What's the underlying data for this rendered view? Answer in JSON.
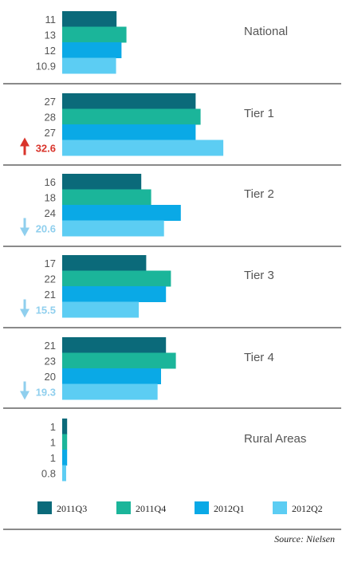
{
  "chart_data": {
    "type": "bar",
    "orientation": "horizontal",
    "series": [
      {
        "name": "2011Q3",
        "color": "#0b6a7a"
      },
      {
        "name": "2011Q4",
        "color": "#1bb59a"
      },
      {
        "name": "2012Q1",
        "color": "#0aa9e6"
      },
      {
        "name": "2012Q2",
        "color": "#5ccdf3"
      }
    ],
    "groups": [
      {
        "label": "National",
        "values": [
          11,
          13,
          12,
          10.9
        ],
        "labels": [
          "11",
          "13",
          "12",
          "10.9"
        ],
        "trend": "none"
      },
      {
        "label": "Tier 1",
        "values": [
          27,
          28,
          27,
          32.6
        ],
        "labels": [
          "27",
          "28",
          "27",
          "32.6"
        ],
        "trend": "up"
      },
      {
        "label": "Tier 2",
        "values": [
          16,
          18,
          24,
          20.6
        ],
        "labels": [
          "16",
          "18",
          "24",
          "20.6"
        ],
        "trend": "down"
      },
      {
        "label": "Tier 3",
        "values": [
          17,
          22,
          21,
          15.5
        ],
        "labels": [
          "17",
          "22",
          "21",
          "15.5"
        ],
        "trend": "down"
      },
      {
        "label": "Tier 4",
        "values": [
          21,
          23,
          20,
          19.3
        ],
        "labels": [
          "21",
          "23",
          "20",
          "19.3"
        ],
        "trend": "down"
      },
      {
        "label": "Rural Areas",
        "values": [
          1,
          1,
          1,
          0.8
        ],
        "labels": [
          "1",
          "1",
          "1",
          "0.8"
        ],
        "trend": "none"
      }
    ],
    "trend_colors": {
      "up": "#d9342b",
      "down": "#8fcfee"
    },
    "legend": "bottom",
    "grid": false
  },
  "source": "Source: Nielsen"
}
